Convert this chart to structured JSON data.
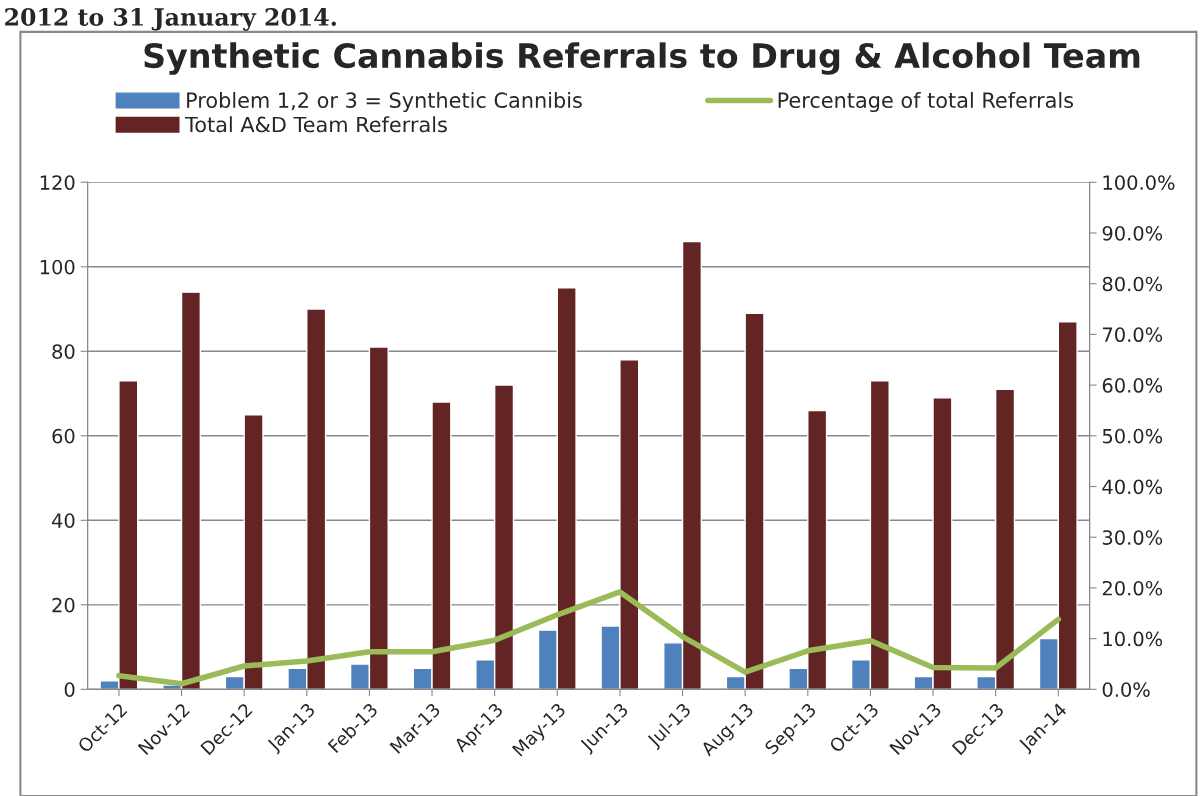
{
  "chart_data": {
    "type": "bar",
    "title": "Synthetic Cannabis Referrals to Drug & Alcohol Team",
    "categories": [
      "Oct-12",
      "Nov-12",
      "Dec-12",
      "Jan-13",
      "Feb-13",
      "Mar-13",
      "Apr-13",
      "May-13",
      "Jun-13",
      "Jul-13",
      "Aug-13",
      "Sep-13",
      "Oct-13",
      "Nov-13",
      "Dec-13",
      "Jan-14"
    ],
    "series": [
      {
        "name": "Problem 1,2 or 3 = Synthetic Cannibis",
        "color": "#4f81bd",
        "values": [
          2,
          1,
          3,
          5,
          6,
          5,
          7,
          14,
          15,
          11,
          3,
          5,
          7,
          3,
          3,
          12
        ]
      },
      {
        "name": "Total A&D Team Referrals",
        "color": "#632523",
        "values": [
          73,
          94,
          65,
          90,
          81,
          68,
          72,
          95,
          78,
          106,
          89,
          66,
          73,
          69,
          71,
          87
        ]
      },
      {
        "name": "Percentage of total Referrals",
        "type": "line",
        "axis": "y2",
        "color": "#9bbb59",
        "values": [
          2.7,
          1.1,
          4.6,
          5.6,
          7.4,
          7.4,
          9.7,
          14.7,
          19.2,
          10.4,
          3.4,
          7.6,
          9.6,
          4.3,
          4.2,
          13.8
        ]
      }
    ],
    "ylim": [
      0,
      120
    ],
    "yticks": [
      0,
      20,
      40,
      60,
      80,
      100,
      120
    ],
    "y2lim": [
      0,
      100
    ],
    "y2ticks": [
      {
        "value": 0,
        "label": "0.0%"
      },
      {
        "value": 10,
        "label": "10.0%"
      },
      {
        "value": 20,
        "label": "20.0%"
      },
      {
        "value": 30,
        "label": "30.0%"
      },
      {
        "value": 40,
        "label": "40.0%"
      },
      {
        "value": 50,
        "label": "50.0%"
      },
      {
        "value": 60,
        "label": "60.0%"
      },
      {
        "value": 70,
        "label": "70.0%"
      },
      {
        "value": 80,
        "label": "80.0%"
      },
      {
        "value": 90,
        "label": "90.0%"
      },
      {
        "value": 100,
        "label": "100.0%"
      }
    ],
    "grid": "y",
    "legend": "top",
    "annotations": [
      "2012 to 31 January 2014."
    ]
  }
}
